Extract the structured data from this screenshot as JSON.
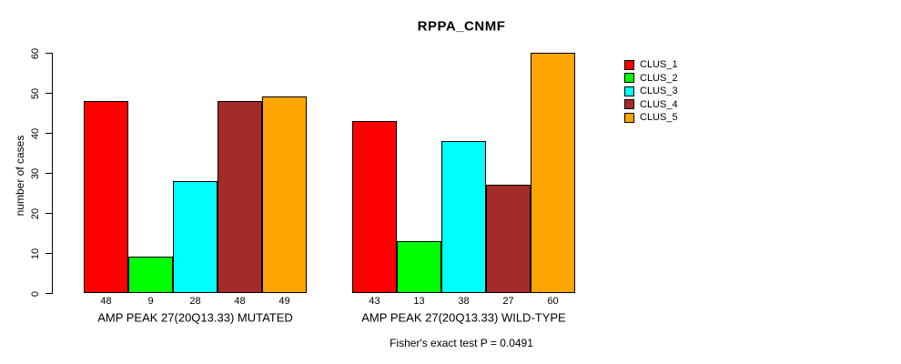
{
  "title": "RPPA_CNMF",
  "chart_data": {
    "type": "bar",
    "title": "RPPA_CNMF",
    "xlabel": "",
    "ylabel": "number of cases",
    "ylim": [
      0,
      60
    ],
    "yticks": [
      0,
      10,
      20,
      30,
      40,
      50,
      60
    ],
    "grid": false,
    "legend_position": "right",
    "series": [
      {
        "name": "CLUS_1",
        "color": "#FF0000"
      },
      {
        "name": "CLUS_2",
        "color": "#00FF00"
      },
      {
        "name": "CLUS_3",
        "color": "#00FFFF"
      },
      {
        "name": "CLUS_4",
        "color": "#A52A2A"
      },
      {
        "name": "CLUS_5",
        "color": "#FFA500"
      }
    ],
    "groups": [
      {
        "label": "AMP PEAK 27(20Q13.33) MUTATED",
        "values": [
          48,
          9,
          28,
          48,
          49
        ]
      },
      {
        "label": "AMP PEAK 27(20Q13.33) WILD-TYPE",
        "values": [
          43,
          13,
          38,
          27,
          60
        ]
      }
    ],
    "bar_value_labels": [
      [
        48,
        9,
        28,
        48,
        49
      ],
      [
        43,
        13,
        38,
        27,
        60
      ]
    ],
    "annotation": "Fisher's exact test P = 0.0491"
  }
}
